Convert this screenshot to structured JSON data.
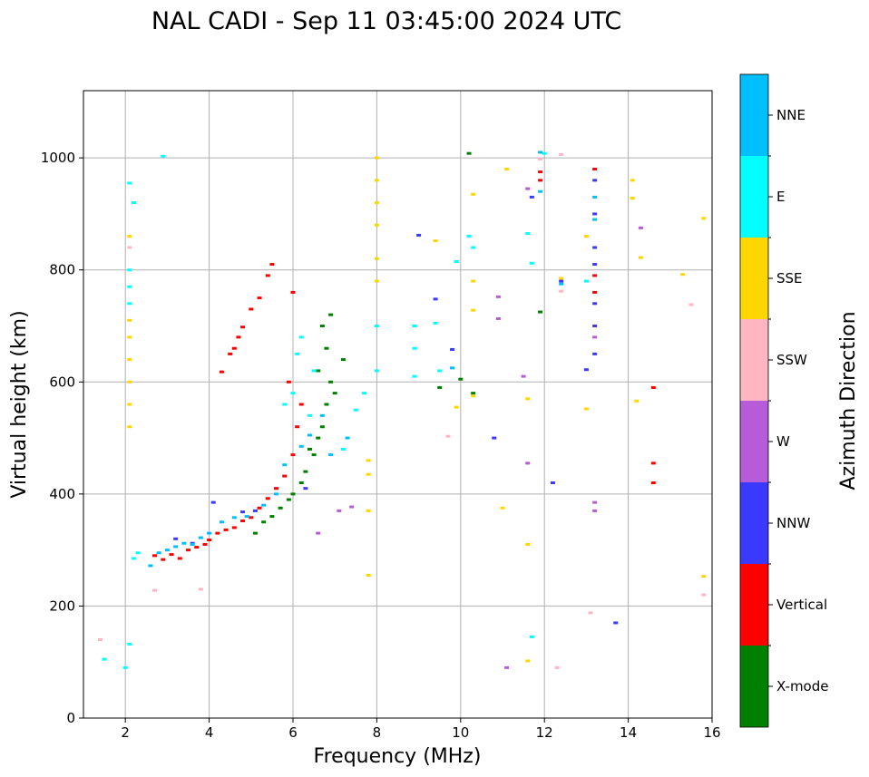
{
  "chart_data": {
    "type": "scatter",
    "title": "NAL CADI - Sep 11 03:45:00 2024 UTC",
    "xlabel": "Frequency (MHz)",
    "ylabel": "Virtual height (km)",
    "xlim": [
      1,
      16
    ],
    "ylim": [
      0,
      1120
    ],
    "xticks": [
      "2",
      "4",
      "6",
      "8",
      "10",
      "12",
      "14",
      "16"
    ],
    "yticks": [
      "0",
      "200",
      "400",
      "600",
      "800",
      "1000"
    ],
    "grid": true,
    "colorbar": {
      "label": "Azimuth Direction",
      "categories": [
        {
          "name": "X-mode",
          "color": "#008000"
        },
        {
          "name": "Vertical",
          "color": "#ff0000"
        },
        {
          "name": "NNW",
          "color": "#3a3aff"
        },
        {
          "name": "W",
          "color": "#b65cd8"
        },
        {
          "name": "SSW",
          "color": "#ffb6c1"
        },
        {
          "name": "SSE",
          "color": "#ffd700"
        },
        {
          "name": "E",
          "color": "#00ffff"
        },
        {
          "name": "NNE",
          "color": "#00bfff"
        }
      ]
    },
    "series": [
      {
        "name": "Vertical",
        "points": [
          [
            2.7,
            290
          ],
          [
            2.9,
            283
          ],
          [
            3.1,
            292
          ],
          [
            3.3,
            285
          ],
          [
            3.5,
            300
          ],
          [
            3.7,
            305
          ],
          [
            3.9,
            310
          ],
          [
            4.0,
            318
          ],
          [
            4.2,
            330
          ],
          [
            4.4,
            336
          ],
          [
            4.6,
            340
          ],
          [
            4.8,
            352
          ],
          [
            5.0,
            358
          ],
          [
            5.2,
            375
          ],
          [
            5.4,
            392
          ],
          [
            5.6,
            410
          ],
          [
            5.8,
            432
          ],
          [
            6.0,
            470
          ],
          [
            6.1,
            520
          ],
          [
            6.2,
            560
          ],
          [
            5.9,
            600
          ],
          [
            4.3,
            618
          ],
          [
            4.5,
            650
          ],
          [
            4.6,
            660
          ],
          [
            4.7,
            680
          ],
          [
            4.8,
            698
          ],
          [
            5.0,
            730
          ],
          [
            5.2,
            750
          ],
          [
            5.4,
            790
          ],
          [
            5.5,
            810
          ],
          [
            6.0,
            760
          ],
          [
            14.6,
            590
          ],
          [
            14.6,
            455
          ],
          [
            14.6,
            420
          ],
          [
            11.9,
            960
          ],
          [
            11.9,
            975
          ],
          [
            13.2,
            790
          ],
          [
            13.2,
            760
          ],
          [
            13.2,
            980
          ]
        ]
      },
      {
        "name": "X-mode",
        "points": [
          [
            5.3,
            350
          ],
          [
            5.5,
            360
          ],
          [
            5.7,
            375
          ],
          [
            5.9,
            390
          ],
          [
            6.0,
            400
          ],
          [
            6.2,
            420
          ],
          [
            6.3,
            440
          ],
          [
            6.5,
            470
          ],
          [
            6.6,
            500
          ],
          [
            6.7,
            520
          ],
          [
            6.8,
            560
          ],
          [
            6.9,
            600
          ],
          [
            6.6,
            620
          ],
          [
            6.8,
            660
          ],
          [
            6.7,
            700
          ],
          [
            6.9,
            720
          ],
          [
            7.2,
            640
          ],
          [
            7.0,
            580
          ],
          [
            6.4,
            480
          ],
          [
            5.1,
            330
          ],
          [
            10.0,
            605
          ],
          [
            10.3,
            580
          ],
          [
            9.5,
            590
          ],
          [
            10.2,
            1008
          ],
          [
            11.9,
            725
          ]
        ]
      },
      {
        "name": "NNW",
        "points": [
          [
            3.2,
            320
          ],
          [
            3.6,
            312
          ],
          [
            4.1,
            385
          ],
          [
            4.8,
            368
          ],
          [
            5.1,
            370
          ],
          [
            6.3,
            410
          ],
          [
            10.8,
            500
          ],
          [
            13.2,
            650
          ],
          [
            13.2,
            700
          ],
          [
            13.2,
            740
          ],
          [
            13.2,
            810
          ],
          [
            13.2,
            840
          ],
          [
            13.2,
            900
          ],
          [
            13.2,
            960
          ],
          [
            12.4,
            780
          ],
          [
            13.7,
            170
          ],
          [
            9.0,
            862
          ],
          [
            9.8,
            658
          ],
          [
            13.0,
            622
          ],
          [
            11.7,
            930
          ],
          [
            12.2,
            420
          ],
          [
            9.4,
            748
          ]
        ]
      },
      {
        "name": "W",
        "points": [
          [
            6.6,
            330
          ],
          [
            7.1,
            370
          ],
          [
            7.4,
            377
          ],
          [
            10.9,
            752
          ],
          [
            13.2,
            385
          ],
          [
            13.2,
            370
          ],
          [
            13.2,
            680
          ],
          [
            14.3,
            875
          ],
          [
            11.6,
            455
          ],
          [
            10.9,
            713
          ],
          [
            11.1,
            90
          ],
          [
            11.5,
            610
          ],
          [
            11.6,
            945
          ]
        ]
      },
      {
        "name": "SSW",
        "points": [
          [
            1.4,
            140
          ],
          [
            2.7,
            228
          ],
          [
            3.8,
            230
          ],
          [
            12.3,
            90
          ],
          [
            13.1,
            188
          ],
          [
            15.5,
            738
          ],
          [
            15.8,
            220
          ],
          [
            12.4,
            1006
          ],
          [
            12.4,
            762
          ],
          [
            11.9,
            998
          ],
          [
            9.7,
            503
          ],
          [
            2.1,
            840
          ]
        ]
      },
      {
        "name": "SSE",
        "points": [
          [
            2.1,
            520
          ],
          [
            2.1,
            560
          ],
          [
            2.1,
            600
          ],
          [
            2.1,
            640
          ],
          [
            2.1,
            680
          ],
          [
            2.1,
            710
          ],
          [
            2.1,
            860
          ],
          [
            7.8,
            370
          ],
          [
            7.8,
            460
          ],
          [
            7.8,
            435
          ],
          [
            7.8,
            255
          ],
          [
            8.0,
            1000
          ],
          [
            8.0,
            960
          ],
          [
            8.0,
            920
          ],
          [
            8.0,
            880
          ],
          [
            8.0,
            820
          ],
          [
            8.0,
            780
          ],
          [
            13.0,
            860
          ],
          [
            13.0,
            552
          ],
          [
            14.1,
            960
          ],
          [
            14.1,
            928
          ],
          [
            14.3,
            822
          ],
          [
            14.2,
            566
          ],
          [
            15.3,
            792
          ],
          [
            15.8,
            892
          ],
          [
            15.8,
            253
          ],
          [
            12.4,
            785
          ],
          [
            11.6,
            310
          ],
          [
            11.6,
            102
          ],
          [
            11.6,
            570
          ],
          [
            10.3,
            780
          ],
          [
            10.3,
            728
          ],
          [
            10.3,
            935
          ],
          [
            11.1,
            980
          ],
          [
            11.0,
            375
          ],
          [
            9.9,
            555
          ],
          [
            10.3,
            575
          ],
          [
            9.4,
            852
          ]
        ]
      },
      {
        "name": "E",
        "points": [
          [
            2.1,
            740
          ],
          [
            2.1,
            770
          ],
          [
            2.1,
            800
          ],
          [
            2.2,
            920
          ],
          [
            2.1,
            955
          ],
          [
            2.9,
            1003
          ],
          [
            1.5,
            105
          ],
          [
            2.2,
            285
          ],
          [
            2.3,
            295
          ],
          [
            5.8,
            560
          ],
          [
            6.0,
            580
          ],
          [
            6.1,
            650
          ],
          [
            6.2,
            680
          ],
          [
            6.5,
            620
          ],
          [
            6.4,
            540
          ],
          [
            7.2,
            480
          ],
          [
            7.5,
            550
          ],
          [
            7.7,
            580
          ],
          [
            8.0,
            620
          ],
          [
            8.0,
            700
          ],
          [
            8.9,
            700
          ],
          [
            8.9,
            660
          ],
          [
            8.9,
            610
          ],
          [
            9.4,
            705
          ],
          [
            9.5,
            620
          ],
          [
            10.2,
            860
          ],
          [
            10.3,
            840
          ],
          [
            9.9,
            815
          ],
          [
            11.6,
            865
          ],
          [
            11.7,
            812
          ],
          [
            11.7,
            145
          ],
          [
            12.0,
            1008
          ],
          [
            13.0,
            780
          ],
          [
            2.1,
            132
          ],
          [
            2.0,
            90
          ]
        ]
      },
      {
        "name": "NNE",
        "points": [
          [
            2.6,
            272
          ],
          [
            2.8,
            295
          ],
          [
            3.0,
            300
          ],
          [
            3.2,
            306
          ],
          [
            3.4,
            312
          ],
          [
            3.6,
            310
          ],
          [
            3.8,
            322
          ],
          [
            4.0,
            330
          ],
          [
            4.3,
            350
          ],
          [
            4.6,
            358
          ],
          [
            4.9,
            360
          ],
          [
            5.3,
            380
          ],
          [
            5.6,
            400
          ],
          [
            5.8,
            452
          ],
          [
            6.2,
            485
          ],
          [
            6.4,
            505
          ],
          [
            6.7,
            540
          ],
          [
            6.9,
            470
          ],
          [
            7.3,
            500
          ],
          [
            9.8,
            625
          ],
          [
            11.9,
            1010
          ],
          [
            11.9,
            940
          ],
          [
            13.2,
            890
          ],
          [
            13.2,
            930
          ],
          [
            12.4,
            775
          ]
        ]
      }
    ]
  }
}
